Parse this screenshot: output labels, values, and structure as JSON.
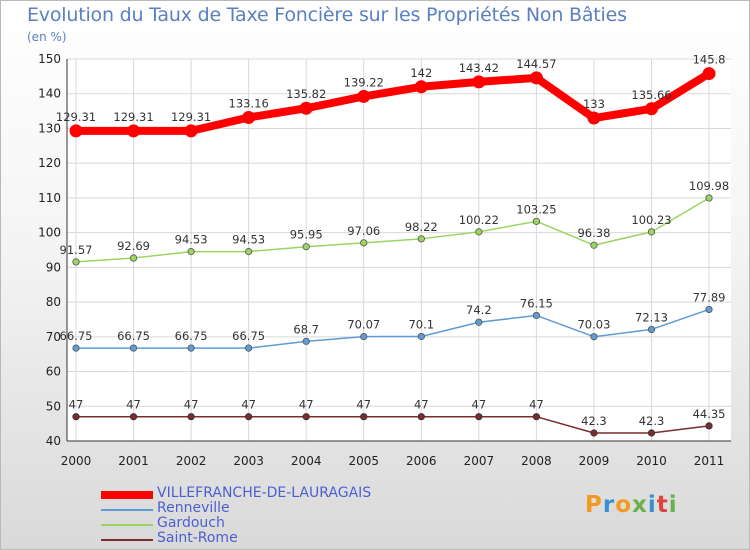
{
  "chart_data": {
    "type": "line",
    "title": "Evolution du Taux de Taxe Foncière sur les Propriétés Non Bâties",
    "unit_label": "(en %)",
    "x": [
      "2000",
      "2001",
      "2002",
      "2003",
      "2004",
      "2005",
      "2006",
      "2007",
      "2008",
      "2009",
      "2010",
      "2011"
    ],
    "ylim": [
      40,
      150
    ],
    "yticks": [
      40,
      50,
      60,
      70,
      80,
      90,
      100,
      110,
      120,
      130,
      140,
      150
    ],
    "grid": true,
    "legend_position": "bottom-left",
    "series": [
      {
        "name": "VILLEFRANCHE-DE-LAURAGAIS",
        "color": "#ff0000",
        "values": [
          129.31,
          129.31,
          129.31,
          133.16,
          135.82,
          139.22,
          142,
          143.42,
          144.57,
          133,
          135.66,
          145.8
        ],
        "labels": [
          "129.31",
          "129.31",
          "129.31",
          "133.16",
          "135.82",
          "139.22",
          "142",
          "143.42",
          "144.57",
          "133",
          "135.66",
          "145.8"
        ]
      },
      {
        "name": "Renneville",
        "color": "#5f9bd5",
        "values": [
          66.75,
          66.75,
          66.75,
          66.75,
          68.7,
          70.07,
          70.1,
          74.2,
          76.15,
          70.03,
          72.13,
          77.89
        ],
        "labels": [
          "66.75",
          "66.75",
          "66.75",
          "66.75",
          "68.7",
          "70.07",
          "70.1",
          "74.2",
          "76.15",
          "70.03",
          "72.13",
          "77.89"
        ]
      },
      {
        "name": "Gardouch",
        "color": "#9ad462",
        "values": [
          91.57,
          92.69,
          94.53,
          94.53,
          95.95,
          97.06,
          98.22,
          100.22,
          103.25,
          96.38,
          100.23,
          109.98
        ],
        "labels": [
          "91.57",
          "92.69",
          "94.53",
          "94.53",
          "95.95",
          "97.06",
          "98.22",
          "100.22",
          "103.25",
          "96.38",
          "100.23",
          "109.98"
        ]
      },
      {
        "name": "Saint-Rome",
        "color": "#7b2c2c",
        "values": [
          47,
          47,
          47,
          47,
          47,
          47,
          47,
          47,
          47,
          42.3,
          42.3,
          44.35
        ],
        "labels": [
          "47",
          "47",
          "47",
          "47",
          "47",
          "47",
          "47",
          "47",
          "47",
          "42.3",
          "42.3",
          "44.35"
        ]
      }
    ]
  },
  "logo": {
    "letters": [
      "P",
      "r",
      "o",
      "x",
      "i",
      "t",
      "i"
    ],
    "colors": [
      "#f29a1f",
      "#3a8fd1",
      "#f29a1f",
      "#6ab04c",
      "#3a8fd1",
      "#e0413b",
      "#6ab04c"
    ]
  }
}
